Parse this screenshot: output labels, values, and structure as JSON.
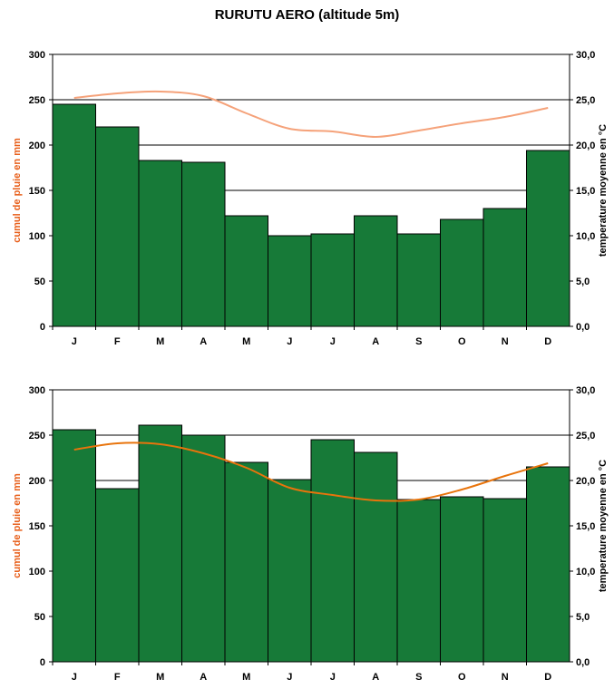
{
  "title": "RURUTU AERO (altitude 5m)",
  "colors": {
    "bar": "#177a38",
    "bar_stroke": "#000000",
    "line_top": "#f5a27a",
    "line_bottom": "#e8740c",
    "left_label": "#e8601c"
  },
  "chart_data": [
    {
      "type": "bar",
      "categories": [
        "J",
        "F",
        "M",
        "A",
        "M",
        "J",
        "J",
        "A",
        "S",
        "O",
        "N",
        "D"
      ],
      "series": [
        {
          "values": [
            245,
            220,
            183,
            181,
            122,
            100,
            102,
            122,
            102,
            118,
            130,
            194
          ]
        },
        {
          "values": [
            25.2,
            25.7,
            25.9,
            25.4,
            23.5,
            21.8,
            21.5,
            20.9,
            21.6,
            22.4,
            23.1,
            24.1
          ]
        }
      ],
      "ylabel": "cumul de pluie en mm",
      "ylabel_right": "temperature moyenne en °C",
      "ylim": [
        0,
        300
      ],
      "ylim_right": [
        0,
        30
      ],
      "yticks": [
        "0",
        "50",
        "100",
        "150",
        "200",
        "250",
        "300"
      ],
      "yticks_right": [
        "0,0",
        "5,0",
        "10,0",
        "15,0",
        "20,0",
        "25,0",
        "30,0"
      ],
      "grid": true
    },
    {
      "type": "bar",
      "categories": [
        "J",
        "F",
        "M",
        "A",
        "M",
        "J",
        "J",
        "A",
        "S",
        "O",
        "N",
        "D"
      ],
      "series": [
        {
          "values": [
            256,
            191,
            261,
            250,
            220,
            201,
            245,
            231,
            179,
            182,
            180,
            215
          ]
        },
        {
          "values": [
            23.4,
            24.1,
            24.0,
            23.0,
            21.4,
            19.2,
            18.4,
            17.8,
            17.9,
            19.0,
            20.5,
            21.9
          ]
        }
      ],
      "ylabel": "cumul de pluie en mm",
      "ylabel_right": "temperature moyenne en °C",
      "ylim": [
        0,
        300
      ],
      "ylim_right": [
        0,
        30
      ],
      "yticks": [
        "0",
        "50",
        "100",
        "150",
        "200",
        "250",
        "300"
      ],
      "yticks_right": [
        "0,0",
        "5,0",
        "10,0",
        "15,0",
        "20,0",
        "25,0",
        "30,0"
      ],
      "grid": true
    }
  ]
}
